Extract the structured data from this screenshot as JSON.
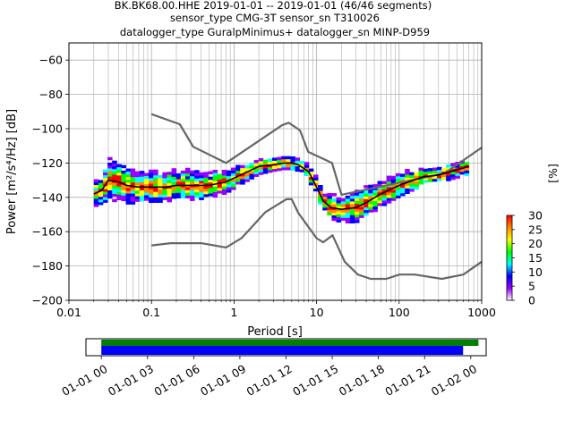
{
  "chart_data": [
    {
      "type": "heatmap",
      "title_lines": [
        "BK.BK68.00.HHE   2019-01-01 -- 2019-01-01  (46/46 segments)",
        "sensor_type CMG-3T sensor_sn T310026",
        "datalogger_type GuralpMinimus+ datalogger_sn MINP-D959"
      ],
      "xlabel": "Period [s]",
      "ylabel": "Power [m²/s⁴/Hz] [dB]",
      "xscale": "log",
      "xlim": [
        0.01,
        1000
      ],
      "ylim": [
        -200,
        -50
      ],
      "x_ticks": [
        0.01,
        0.1,
        1,
        10,
        100,
        1000
      ],
      "x_tick_labels": [
        "0.01",
        "0.1",
        "1",
        "10",
        "100",
        "1000"
      ],
      "y_ticks": [
        -200,
        -180,
        -160,
        -140,
        -120,
        -100,
        -80,
        -60
      ],
      "y_tick_labels": [
        "−200",
        "−180",
        "−160",
        "−140",
        "−120",
        "−100",
        "−80",
        "−60"
      ],
      "grid": true,
      "colorbar": {
        "label": "[%]",
        "range": [
          0,
          30
        ],
        "ticks": [
          "0",
          "5",
          "10",
          "15",
          "20",
          "25",
          "30"
        ],
        "colors": [
          "#ffffff",
          "#9900ff",
          "#0000ff",
          "#00ffff",
          "#00ff00",
          "#ffff00",
          "#ff8800",
          "#ff0000"
        ]
      },
      "noise_model_high": {
        "name": "",
        "x": [
          0.1,
          0.22,
          0.32,
          0.8,
          3.8,
          4.6,
          6.3,
          7.9,
          15.4,
          20,
          354.8,
          1000
        ],
        "y": [
          -91.5,
          -97.4,
          -110.5,
          -120,
          -98,
          -96.5,
          -101,
          -113.5,
          -120,
          -138.5,
          -126,
          -111
        ]
      },
      "noise_model_low": {
        "name": "",
        "x": [
          0.1,
          0.17,
          0.4,
          0.8,
          1.24,
          2.4,
          4.3,
          5,
          6,
          10,
          12,
          15.6,
          21.9,
          31.6,
          45,
          70,
          101,
          154,
          328,
          600,
          1000
        ],
        "y": [
          -168,
          -166.7,
          -166.7,
          -169.2,
          -163.7,
          -148.6,
          -141.1,
          -141.1,
          -149,
          -163.8,
          -166.2,
          -162.1,
          -177.5,
          -185,
          -187.5,
          -187.5,
          -185,
          -185,
          -187.5,
          -185,
          -177.5
        ]
      },
      "mode_curve": {
        "name": "",
        "x": [
          0.02,
          0.025,
          0.03,
          0.04,
          0.05,
          0.07,
          0.1,
          0.15,
          0.2,
          0.3,
          0.5,
          0.8,
          1.2,
          2,
          3,
          4,
          5,
          6,
          8,
          10,
          12,
          15,
          20,
          30,
          40,
          60,
          100,
          150,
          200,
          300,
          500,
          700
        ],
        "y": [
          -138,
          -136,
          -130,
          -131,
          -133,
          -134,
          -134,
          -134,
          -133,
          -133,
          -133,
          -131,
          -127,
          -122,
          -121,
          -120,
          -120,
          -121,
          -125,
          -134,
          -142,
          -146,
          -147,
          -146,
          -143,
          -138,
          -133,
          -130,
          -128,
          -127,
          -124,
          -122
        ]
      },
      "psd_heatmap": {
        "x": [
          0.02,
          0.025,
          0.03,
          0.04,
          0.05,
          0.07,
          0.1,
          0.15,
          0.2,
          0.3,
          0.5,
          0.8,
          1.2,
          2,
          3,
          4,
          5,
          6,
          8,
          10,
          12,
          15,
          20,
          30,
          40,
          60,
          100,
          150,
          200,
          300,
          500,
          700
        ],
        "y_center": [
          -138,
          -136,
          -130,
          -131,
          -133,
          -134,
          -134,
          -134,
          -133,
          -133,
          -133,
          -131,
          -127,
          -122,
          -121,
          -120,
          -120,
          -121,
          -125,
          -134,
          -142,
          -146,
          -147,
          -146,
          -143,
          -138,
          -133,
          -130,
          -128,
          -127,
          -124,
          -122
        ],
        "spread_db": [
          8,
          8,
          12,
          12,
          11,
          10,
          9,
          9,
          9,
          9,
          8,
          7,
          6,
          5,
          4,
          4,
          4,
          4,
          5,
          5,
          6,
          7,
          8,
          9,
          9,
          8,
          7,
          6,
          5,
          5,
          5,
          5
        ]
      }
    },
    {
      "type": "timeline",
      "xlim": [
        "2019-01-01 00:00",
        "2019-01-02 01:30"
      ],
      "tick_labels": [
        "01-01 00",
        "01-01 03",
        "01-01 06",
        "01-01 09",
        "01-01 12",
        "01-01 15",
        "01-01 18",
        "01-01 21",
        "01-02 00"
      ],
      "tick_hours": [
        0,
        3,
        6,
        9,
        12,
        15,
        18,
        21,
        24
      ],
      "bars": [
        {
          "name": "",
          "color": "#008000",
          "start_hour": 0,
          "end_hour": 24.5
        },
        {
          "name": "",
          "color": "#0000ff",
          "start_hour": 0,
          "end_hour": 23.5
        }
      ]
    }
  ]
}
